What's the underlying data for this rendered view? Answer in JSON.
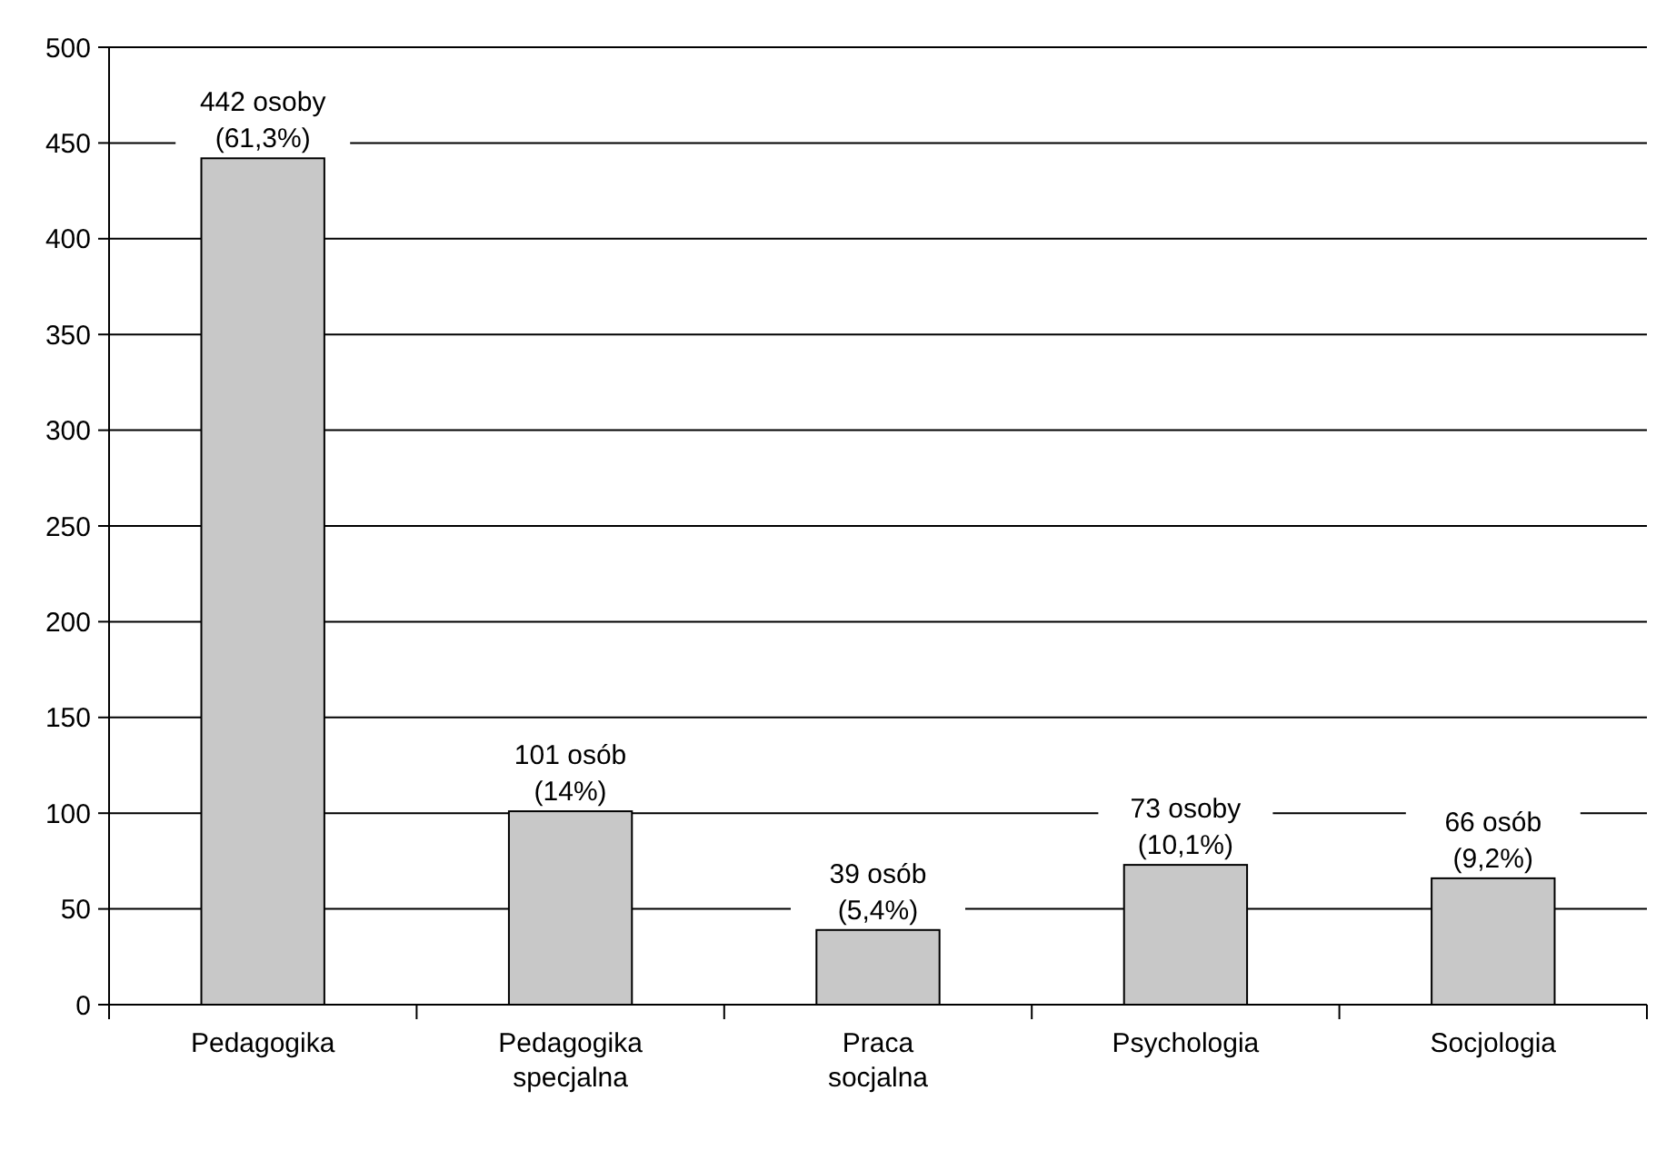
{
  "chart_data": {
    "type": "bar",
    "categories": [
      "Pedagogika",
      "Pedagogika specjalna",
      "Praca socjalna",
      "Psychologia",
      "Socjologia"
    ],
    "values": [
      442,
      101,
      39,
      73,
      66
    ],
    "color": "#c8c8c8",
    "value_labels": [
      "442 osoby\n(61,3%)",
      "101 osób\n(14%)",
      "39 osób\n(5,4%)",
      "73 osoby\n(10,1%)",
      "66 osób\n(9,2%)"
    ],
    "ylim": [
      0,
      500
    ],
    "yticks": [
      0,
      50,
      100,
      150,
      200,
      250,
      300,
      350,
      400,
      450,
      500
    ],
    "grid": "y"
  }
}
